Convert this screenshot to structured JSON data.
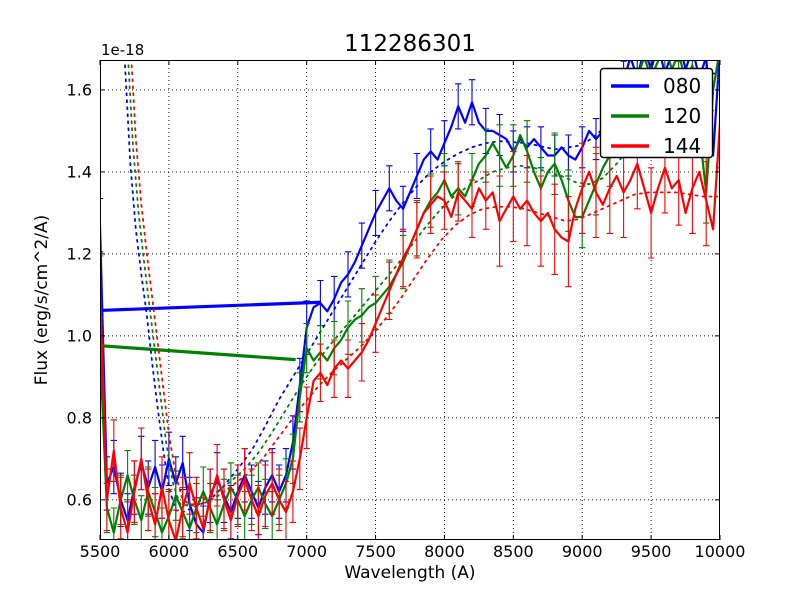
{
  "figure": {
    "title": "112286301",
    "xlabel": "Wavelength (A)",
    "ylabel": "Flux (erg/s/cm^2/A)",
    "y_offset_label": "1e-18"
  },
  "legend": {
    "position": "upper right",
    "entries": [
      {
        "label": "080",
        "color": "#0000ff"
      },
      {
        "label": "120",
        "color": "#008000"
      },
      {
        "label": "144",
        "color": "#ff0000"
      }
    ]
  },
  "chart_data": {
    "type": "line",
    "title": "112286301",
    "xlabel": "Wavelength (A)",
    "ylabel": "Flux (erg/s/cm^2/A)",
    "y_offset_label": "1e-18",
    "xlim": [
      5500,
      10000
    ],
    "ylim": [
      0.502,
      1.673
    ],
    "x_ticks": [
      5500,
      6000,
      6500,
      7000,
      7500,
      8000,
      8500,
      9000,
      9500,
      10000
    ],
    "y_ticks": [
      0.6,
      0.8,
      1.0,
      1.2,
      1.4,
      1.6
    ],
    "grid": "dotted",
    "legend_position": "upper right",
    "x_start": 5500,
    "x_step": 50,
    "series": [
      {
        "name": "080",
        "color": "#0000ff",
        "flux": [
          1.27,
          0.64,
          0.68,
          0.6,
          0.55,
          0.63,
          0.69,
          0.63,
          0.68,
          0.62,
          0.7,
          0.64,
          0.69,
          0.59,
          0.54,
          0.52,
          0.61,
          0.65,
          0.61,
          0.57,
          0.62,
          0.66,
          0.62,
          0.58,
          0.63,
          0.66,
          0.62,
          0.66,
          0.74,
          0.88,
          1.02,
          1.07,
          1.08,
          1.06,
          1.09,
          1.13,
          1.15,
          1.18,
          1.22,
          1.26,
          1.3,
          1.33,
          1.36,
          1.33,
          1.31,
          1.35,
          1.39,
          1.43,
          1.45,
          1.43,
          1.47,
          1.51,
          1.56,
          1.52,
          1.57,
          1.52,
          1.5,
          1.5,
          1.49,
          1.48,
          1.45,
          1.48,
          1.46,
          1.48,
          1.46,
          1.44,
          1.44,
          1.46,
          1.44,
          1.43,
          1.46,
          1.5,
          1.48,
          1.5,
          1.52,
          1.55,
          1.62,
          1.68,
          1.63,
          1.7,
          1.65,
          1.71,
          1.64,
          1.69,
          1.72,
          1.65,
          1.7,
          1.63,
          1.68,
          1.44,
          1.7
        ],
        "gap_line": [
          [
            5500,
            1.062
          ],
          [
            7100,
            1.082
          ]
        ],
        "err_ranges": [
          [
            5500,
            7000,
            0.065
          ],
          [
            7000,
            8300,
            0.055
          ],
          [
            8300,
            10000,
            0.05
          ]
        ],
        "dotted": [
          [
            5640,
            1.95
          ],
          [
            5680,
            1.67
          ],
          [
            5720,
            1.42
          ],
          [
            5760,
            1.26
          ],
          [
            5800,
            1.15
          ],
          [
            5840,
            1.05
          ],
          [
            5880,
            0.93
          ],
          [
            5920,
            0.82
          ],
          [
            5960,
            0.72
          ],
          [
            6000,
            0.63
          ],
          [
            6050,
            0.575
          ],
          [
            6100,
            0.57
          ],
          [
            6200,
            0.585
          ],
          [
            6300,
            0.6
          ],
          [
            6400,
            0.635
          ],
          [
            6500,
            0.675
          ],
          [
            6600,
            0.72
          ],
          [
            6700,
            0.78
          ],
          [
            6800,
            0.845
          ],
          [
            6900,
            0.9
          ],
          [
            7000,
            0.955
          ],
          [
            7100,
            1.01
          ],
          [
            7200,
            1.065
          ],
          [
            7300,
            1.12
          ],
          [
            7400,
            1.175
          ],
          [
            7500,
            1.23
          ],
          [
            7600,
            1.28
          ],
          [
            7700,
            1.325
          ],
          [
            7800,
            1.365
          ],
          [
            7900,
            1.4
          ],
          [
            8000,
            1.425
          ],
          [
            8100,
            1.445
          ],
          [
            8200,
            1.46
          ],
          [
            8300,
            1.47
          ],
          [
            8400,
            1.475
          ],
          [
            8600,
            1.47
          ],
          [
            8800,
            1.455
          ],
          [
            9000,
            1.465
          ],
          [
            9100,
            1.49
          ],
          [
            9200,
            1.52
          ],
          [
            9300,
            1.56
          ],
          [
            9400,
            1.6
          ],
          [
            9500,
            1.63
          ],
          [
            9600,
            1.64
          ],
          [
            9700,
            1.65
          ],
          [
            9800,
            1.65
          ],
          [
            9900,
            1.64
          ],
          [
            10000,
            1.64
          ]
        ]
      },
      {
        "name": "120",
        "color": "#008000",
        "flux": [
          0.97,
          0.58,
          0.52,
          0.6,
          0.66,
          0.6,
          0.55,
          0.62,
          0.57,
          0.52,
          0.56,
          0.61,
          0.57,
          0.53,
          0.58,
          0.62,
          0.58,
          0.54,
          0.59,
          0.63,
          0.6,
          0.56,
          0.6,
          0.63,
          0.59,
          0.56,
          0.6,
          0.64,
          0.7,
          0.85,
          0.97,
          0.94,
          0.96,
          0.94,
          0.97,
          0.99,
          1.02,
          1.04,
          1.05,
          1.07,
          1.08,
          1.1,
          1.12,
          1.15,
          1.18,
          1.22,
          1.26,
          1.3,
          1.33,
          1.35,
          1.38,
          1.34,
          1.36,
          1.34,
          1.38,
          1.42,
          1.44,
          1.47,
          1.44,
          1.41,
          1.44,
          1.49,
          1.45,
          1.4,
          1.36,
          1.4,
          1.42,
          1.38,
          1.33,
          1.29,
          1.29,
          1.33,
          1.37,
          1.41,
          1.44,
          1.48,
          1.53,
          1.58,
          1.63,
          1.68,
          1.63,
          1.67,
          1.71,
          1.65,
          1.69,
          1.62,
          1.66,
          1.5,
          1.35,
          1.6,
          1.7
        ],
        "gap_line": [
          [
            5500,
            0.976
          ],
          [
            6920,
            0.942
          ]
        ],
        "err_ranges": [
          [
            5500,
            7000,
            0.06
          ],
          [
            7000,
            8300,
            0.065
          ],
          [
            8300,
            10000,
            0.075
          ]
        ],
        "dotted": [
          [
            5660,
            1.95
          ],
          [
            5700,
            1.7
          ],
          [
            5740,
            1.46
          ],
          [
            5780,
            1.3
          ],
          [
            5820,
            1.18
          ],
          [
            5860,
            1.07
          ],
          [
            5900,
            0.96
          ],
          [
            5940,
            0.85
          ],
          [
            5980,
            0.74
          ],
          [
            6030,
            0.64
          ],
          [
            6080,
            0.59
          ],
          [
            6150,
            0.585
          ],
          [
            6250,
            0.6
          ],
          [
            6350,
            0.62
          ],
          [
            6450,
            0.645
          ],
          [
            6550,
            0.675
          ],
          [
            6650,
            0.715
          ],
          [
            6750,
            0.765
          ],
          [
            6850,
            0.82
          ],
          [
            6950,
            0.875
          ],
          [
            7050,
            0.925
          ],
          [
            7150,
            0.97
          ],
          [
            7250,
            1.01
          ],
          [
            7350,
            1.05
          ],
          [
            7450,
            1.09
          ],
          [
            7550,
            1.13
          ],
          [
            7650,
            1.17
          ],
          [
            7750,
            1.215
          ],
          [
            7850,
            1.26
          ],
          [
            7950,
            1.3
          ],
          [
            8050,
            1.335
          ],
          [
            8150,
            1.36
          ],
          [
            8250,
            1.38
          ],
          [
            8350,
            1.4
          ],
          [
            8450,
            1.41
          ],
          [
            8550,
            1.415
          ],
          [
            8650,
            1.41
          ],
          [
            8750,
            1.4
          ],
          [
            8850,
            1.39
          ],
          [
            8950,
            1.375
          ],
          [
            9050,
            1.37
          ],
          [
            9150,
            1.385
          ],
          [
            9250,
            1.42
          ],
          [
            9350,
            1.46
          ],
          [
            9450,
            1.5
          ],
          [
            9550,
            1.53
          ],
          [
            9650,
            1.55
          ],
          [
            9750,
            1.56
          ],
          [
            9850,
            1.555
          ],
          [
            9950,
            1.55
          ]
        ]
      },
      {
        "name": "144",
        "color": "#ff0000",
        "flux": [
          1.12,
          0.6,
          0.72,
          0.58,
          0.52,
          0.62,
          0.7,
          0.6,
          0.54,
          0.63,
          0.55,
          0.5,
          0.58,
          0.64,
          0.58,
          0.53,
          0.6,
          0.66,
          0.6,
          0.55,
          0.61,
          0.65,
          0.6,
          0.56,
          0.61,
          0.64,
          0.6,
          0.57,
          0.62,
          0.7,
          0.8,
          0.89,
          0.91,
          0.88,
          0.92,
          0.94,
          0.92,
          0.94,
          0.96,
          0.99,
          1.03,
          1.07,
          1.11,
          1.15,
          1.19,
          1.22,
          1.26,
          1.3,
          1.32,
          1.34,
          1.33,
          1.29,
          1.35,
          1.33,
          1.31,
          1.36,
          1.33,
          1.35,
          1.28,
          1.31,
          1.34,
          1.31,
          1.33,
          1.3,
          1.28,
          1.3,
          1.26,
          1.24,
          1.23,
          1.31,
          1.36,
          1.4,
          1.35,
          1.32,
          1.36,
          1.39,
          1.35,
          1.38,
          1.42,
          1.36,
          1.3,
          1.36,
          1.41,
          1.36,
          1.38,
          1.3,
          1.36,
          1.4,
          1.33,
          1.26,
          1.52
        ],
        "gap_line": null,
        "err_ranges": [
          [
            5500,
            7000,
            0.075
          ],
          [
            7000,
            8300,
            0.07
          ],
          [
            8300,
            10000,
            0.11
          ]
        ],
        "dotted": [
          [
            5680,
            1.95
          ],
          [
            5720,
            1.72
          ],
          [
            5760,
            1.48
          ],
          [
            5800,
            1.32
          ],
          [
            5840,
            1.2
          ],
          [
            5880,
            1.09
          ],
          [
            5920,
            0.98
          ],
          [
            5960,
            0.87
          ],
          [
            6000,
            0.76
          ],
          [
            6050,
            0.66
          ],
          [
            6100,
            0.6
          ],
          [
            6180,
            0.585
          ],
          [
            6280,
            0.595
          ],
          [
            6380,
            0.615
          ],
          [
            6480,
            0.64
          ],
          [
            6580,
            0.665
          ],
          [
            6680,
            0.7
          ],
          [
            6780,
            0.745
          ],
          [
            6880,
            0.79
          ],
          [
            6980,
            0.835
          ],
          [
            7080,
            0.875
          ],
          [
            7180,
            0.91
          ],
          [
            7280,
            0.94
          ],
          [
            7380,
            0.97
          ],
          [
            7480,
            1.005
          ],
          [
            7580,
            1.045
          ],
          [
            7680,
            1.09
          ],
          [
            7780,
            1.14
          ],
          [
            7880,
            1.19
          ],
          [
            7980,
            1.235
          ],
          [
            8080,
            1.27
          ],
          [
            8180,
            1.295
          ],
          [
            8280,
            1.31
          ],
          [
            8380,
            1.315
          ],
          [
            8480,
            1.315
          ],
          [
            8580,
            1.31
          ],
          [
            8680,
            1.3
          ],
          [
            8780,
            1.29
          ],
          [
            8880,
            1.28
          ],
          [
            8980,
            1.285
          ],
          [
            9080,
            1.3
          ],
          [
            9180,
            1.315
          ],
          [
            9280,
            1.33
          ],
          [
            9380,
            1.345
          ],
          [
            9480,
            1.35
          ],
          [
            9580,
            1.35
          ],
          [
            9680,
            1.35
          ],
          [
            9780,
            1.345
          ],
          [
            9880,
            1.34
          ],
          [
            9980,
            1.34
          ]
        ]
      }
    ]
  }
}
